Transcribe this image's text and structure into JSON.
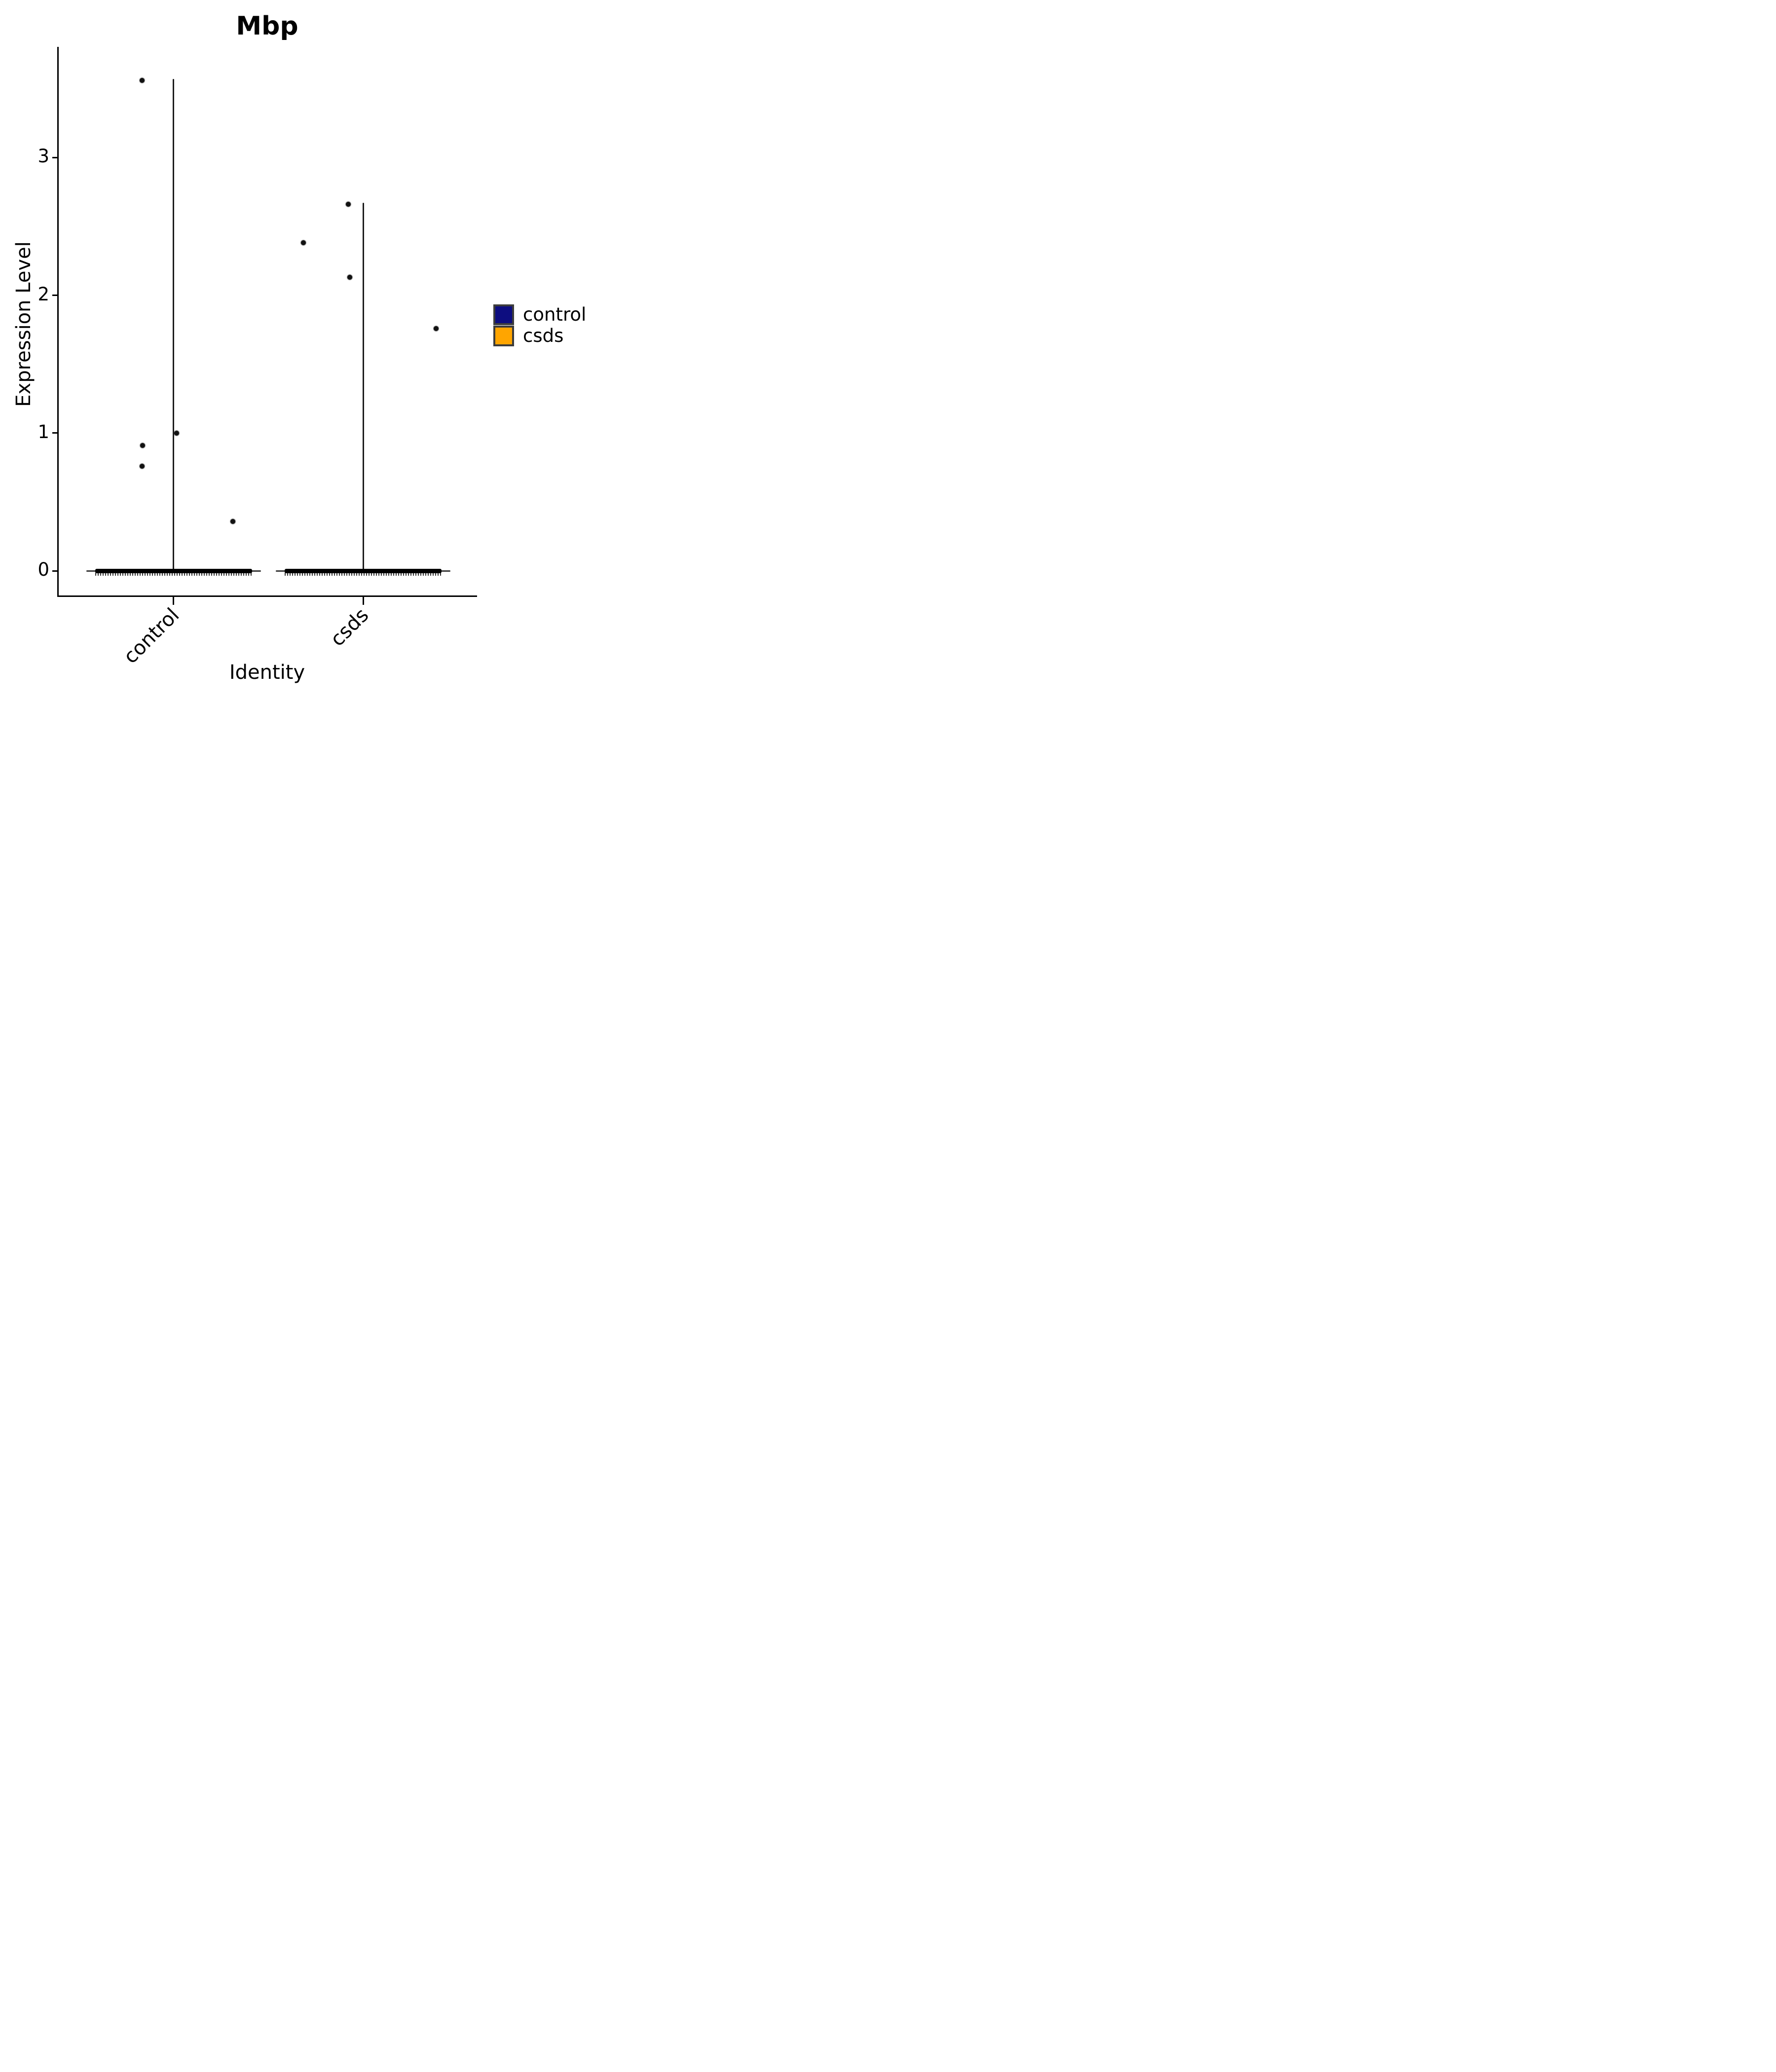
{
  "title": "Mbp",
  "axes": {
    "y_label": "Expression Level",
    "x_label": "Identity"
  },
  "legend": {
    "position": "right",
    "items": [
      {
        "label": "control",
        "color": "#0d0d80"
      },
      {
        "label": "csds",
        "color": "#ffa500"
      }
    ]
  },
  "chart_data": {
    "type": "violin",
    "title": "Mbp",
    "xlabel": "Identity",
    "ylabel": "Expression Level",
    "categories": [
      "control",
      "csds"
    ],
    "y_ticks": [
      0,
      1,
      2,
      3
    ],
    "y_tick_labels": [
      "0",
      "1",
      "2",
      "3"
    ],
    "ylim": [
      -0.19,
      3.8
    ],
    "grid": false,
    "legend_position": "right",
    "series": [
      {
        "name": "control",
        "color": "#0d0d80",
        "violin_top": 3.57,
        "zero_mass": "dense band of overlapping points at expression 0",
        "outlier_points": [
          {
            "value": 3.56,
            "dx": -64
          },
          {
            "value": 1.0,
            "dx": 6
          },
          {
            "value": 0.91,
            "dx": -63
          },
          {
            "value": 0.76,
            "dx": -64
          },
          {
            "value": 0.36,
            "dx": 120
          }
        ]
      },
      {
        "name": "csds",
        "color": "#ffa500",
        "violin_top": 2.67,
        "zero_mass": "dense band of overlapping points at expression 0",
        "outlier_points": [
          {
            "value": 2.66,
            "dx": -30
          },
          {
            "value": 2.38,
            "dx": -121
          },
          {
            "value": 2.13,
            "dx": -27
          },
          {
            "value": 1.76,
            "dx": 148
          }
        ]
      }
    ]
  }
}
